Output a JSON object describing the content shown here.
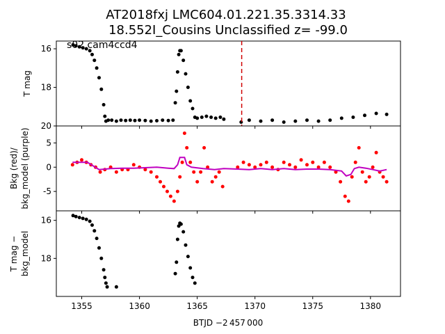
{
  "figure": {
    "title_line1": "AT2018fxj  LMC604.01.221.35.3314.33",
    "title_line2": "18.552I_Cousins Unclassified z= -99.0",
    "annotation": "s02 cam4ccd4",
    "xlabel": "BTJD −2 457 000"
  },
  "chart_data": [
    {
      "type": "scatter",
      "panel": "top",
      "ylabel": "T mag",
      "xlim": [
        1352.8,
        1382.6
      ],
      "ylim": [
        20.0,
        15.6
      ],
      "x_ticks": [
        1355,
        1360,
        1365,
        1370,
        1375,
        1380
      ],
      "y_ticks": [
        16,
        18,
        20
      ],
      "marker_color": "#000000",
      "vline": {
        "x": 1368.85,
        "color": "#d00000",
        "style": "dashed"
      },
      "series": [
        {
          "x": [
            1354.25,
            1354.5,
            1354.8,
            1355.1,
            1355.4,
            1355.7,
            1355.9,
            1356.1,
            1356.3,
            1356.5,
            1356.7,
            1356.9,
            1357.0,
            1357.1,
            1357.3,
            1357.6,
            1358.0,
            1358.4,
            1358.8,
            1359.2,
            1359.6,
            1360.0,
            1360.5,
            1361.0,
            1361.5,
            1362.0,
            1362.5,
            1362.9,
            1363.1,
            1363.2,
            1363.3,
            1363.4,
            1363.5,
            1363.6,
            1363.8,
            1364.0,
            1364.2,
            1364.4,
            1364.6,
            1364.8,
            1365.0,
            1365.4,
            1365.8,
            1366.2,
            1366.6,
            1367.0,
            1367.3,
            1368.8,
            1369.5,
            1370.5,
            1371.5,
            1372.5,
            1373.5,
            1374.5,
            1375.5,
            1376.5,
            1377.5,
            1378.5,
            1379.5,
            1380.5,
            1381.4
          ],
          "y": [
            15.8,
            15.85,
            15.9,
            15.95,
            16.0,
            16.1,
            16.3,
            16.6,
            17.0,
            17.5,
            18.1,
            18.9,
            19.5,
            19.75,
            19.7,
            19.7,
            19.75,
            19.7,
            19.72,
            19.7,
            19.72,
            19.7,
            19.72,
            19.75,
            19.73,
            19.7,
            19.72,
            19.7,
            18.8,
            18.2,
            17.2,
            16.3,
            16.1,
            16.1,
            16.6,
            17.3,
            18.0,
            18.7,
            19.1,
            19.55,
            19.6,
            19.55,
            19.5,
            19.55,
            19.6,
            19.55,
            19.65,
            19.8,
            19.7,
            19.75,
            19.7,
            19.8,
            19.75,
            19.7,
            19.75,
            19.7,
            19.6,
            19.55,
            19.45,
            19.35,
            19.4
          ]
        }
      ]
    },
    {
      "type": "scatter",
      "panel": "middle",
      "ylabel_line1": "Bkg (red)/",
      "ylabel_line2": "bkg_model (purple)",
      "xlim": [
        1352.8,
        1382.6
      ],
      "ylim": [
        -9.0,
        8.5
      ],
      "y_ticks": [
        5,
        0,
        -5
      ],
      "series": [
        {
          "name": "Bkg",
          "color": "#ff0000",
          "x": [
            1354.2,
            1354.6,
            1355.0,
            1355.4,
            1355.8,
            1356.2,
            1356.6,
            1357.0,
            1357.5,
            1358.0,
            1358.5,
            1359.0,
            1359.5,
            1360.0,
            1360.5,
            1361.0,
            1361.5,
            1361.8,
            1362.1,
            1362.4,
            1362.7,
            1363.0,
            1363.3,
            1363.5,
            1363.7,
            1363.9,
            1364.1,
            1364.4,
            1364.7,
            1365.0,
            1365.3,
            1365.6,
            1365.9,
            1366.3,
            1366.6,
            1366.9,
            1367.2,
            1368.5,
            1369.0,
            1369.5,
            1370.0,
            1370.5,
            1371.0,
            1371.5,
            1372.0,
            1372.5,
            1373.0,
            1373.5,
            1374.0,
            1374.5,
            1375.0,
            1375.5,
            1376.0,
            1376.5,
            1377.0,
            1377.4,
            1377.8,
            1378.1,
            1378.4,
            1378.7,
            1379.0,
            1379.3,
            1379.6,
            1379.9,
            1380.2,
            1380.5,
            1380.8,
            1381.1,
            1381.4
          ],
          "y": [
            0.5,
            1.0,
            1.5,
            1.0,
            0.5,
            0.0,
            -1.0,
            -0.5,
            0.0,
            -1.0,
            -0.5,
            -0.5,
            0.5,
            0.0,
            -0.5,
            -1.0,
            -2.0,
            -3.0,
            -4.0,
            -5.0,
            -6.0,
            -7.0,
            -5.0,
            -2.0,
            1.0,
            7.0,
            4.0,
            1.0,
            -1.0,
            -3.0,
            -1.0,
            4.0,
            0.0,
            -3.0,
            -2.0,
            -1.0,
            -4.0,
            0.0,
            1.0,
            0.5,
            0.0,
            0.5,
            1.0,
            0.0,
            -0.5,
            1.0,
            0.5,
            0.0,
            1.5,
            0.5,
            1.0,
            0.0,
            1.0,
            0.0,
            -1.0,
            -3.0,
            -6.0,
            -7.0,
            -2.0,
            1.0,
            4.0,
            -1.0,
            -3.0,
            -2.0,
            0.0,
            3.0,
            -1.0,
            -2.0,
            -3.0
          ]
        },
        {
          "name": "bkg_model",
          "color": "#c000c0",
          "x": [
            1354.2,
            1355.5,
            1356.5,
            1357.5,
            1358.5,
            1359.5,
            1360.5,
            1361.5,
            1362.5,
            1363.0,
            1363.3,
            1363.5,
            1363.9,
            1364.1,
            1364.5,
            1365.5,
            1366.5,
            1367.3,
            1368.5,
            1369.5,
            1370.5,
            1371.5,
            1372.5,
            1373.5,
            1374.5,
            1375.5,
            1376.5,
            1377.5,
            1377.9,
            1378.3,
            1378.6,
            1379.0,
            1379.6,
            1380.2,
            1380.8,
            1381.4
          ],
          "y": [
            1.0,
            1.0,
            -0.5,
            -0.3,
            -0.2,
            -0.2,
            -0.1,
            0.0,
            -0.2,
            -0.3,
            0.5,
            2.0,
            2.0,
            0.5,
            0.0,
            -0.3,
            -0.5,
            -0.3,
            -0.4,
            -0.5,
            -0.3,
            -0.5,
            -0.3,
            -0.5,
            -0.4,
            -0.4,
            -0.5,
            -0.8,
            -1.8,
            -1.5,
            -0.3,
            0.0,
            -0.2,
            -0.5,
            -0.8,
            -0.5
          ]
        }
      ]
    },
    {
      "type": "scatter",
      "panel": "bottom",
      "ylabel_line1": "T mag −",
      "ylabel_line2": "bkg_model",
      "xlim": [
        1352.8,
        1382.6
      ],
      "ylim": [
        20.0,
        15.5
      ],
      "y_ticks": [
        16,
        18
      ],
      "marker_color": "#000000",
      "series": [
        {
          "x": [
            1354.25,
            1354.5,
            1354.8,
            1355.1,
            1355.4,
            1355.7,
            1355.9,
            1356.1,
            1356.3,
            1356.5,
            1356.7,
            1356.9,
            1357.0,
            1357.1,
            1357.2,
            1358.0,
            1363.1,
            1363.2,
            1363.3,
            1363.4,
            1363.5,
            1363.6,
            1363.8,
            1364.0,
            1364.2,
            1364.4,
            1364.6,
            1364.8
          ],
          "y": [
            15.75,
            15.8,
            15.85,
            15.9,
            15.95,
            16.05,
            16.25,
            16.55,
            16.95,
            17.45,
            18.0,
            18.6,
            19.0,
            19.3,
            19.5,
            19.5,
            18.8,
            18.2,
            17.0,
            16.3,
            16.15,
            16.2,
            16.6,
            17.3,
            17.9,
            18.5,
            19.0,
            19.3
          ]
        }
      ]
    }
  ]
}
